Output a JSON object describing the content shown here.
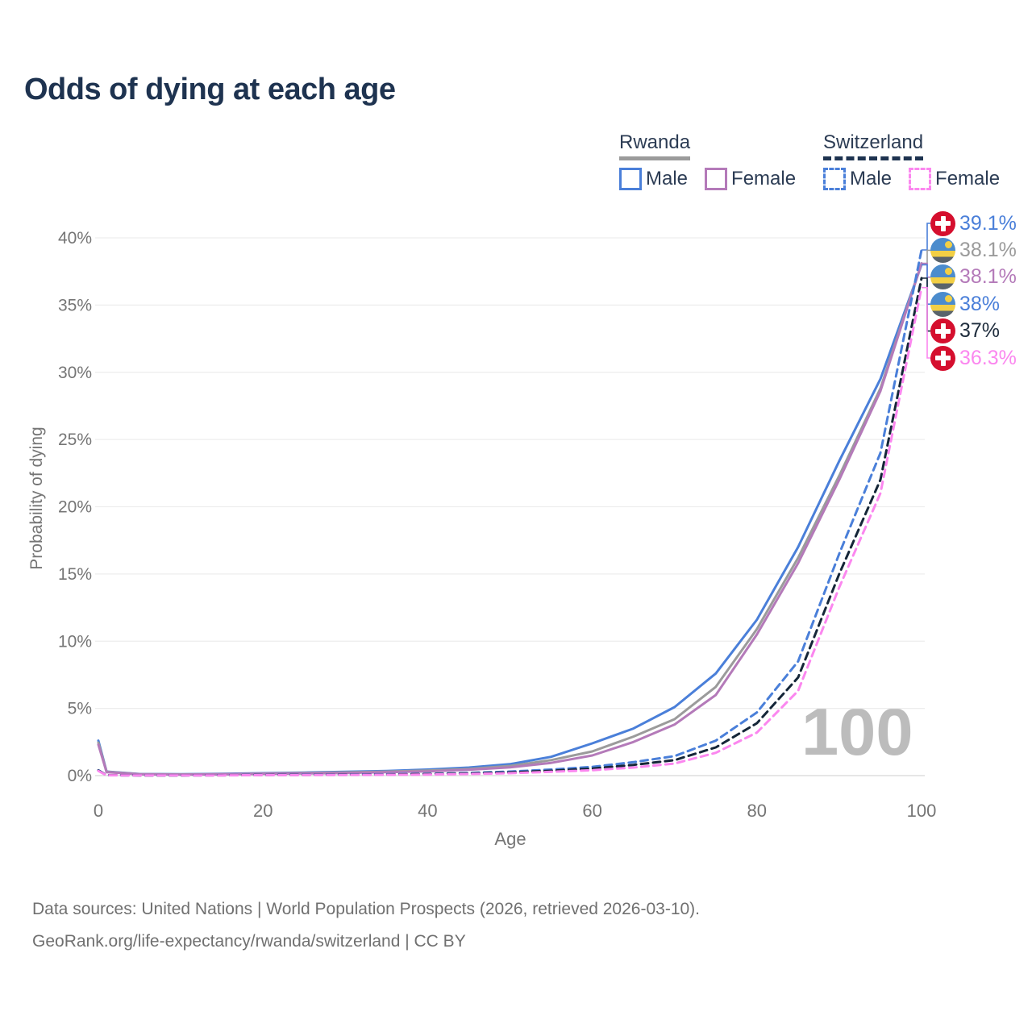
{
  "title": "Odds of dying at each age",
  "watermark": "100",
  "legend": {
    "groups": [
      {
        "label": "Rwanda",
        "line_style": "solid",
        "underline_color": "#9b9b9b",
        "items": [
          {
            "label": "Male",
            "color": "#4a7fd9"
          },
          {
            "label": "Female",
            "color": "#b47ab9"
          }
        ]
      },
      {
        "label": "Switzerland",
        "line_style": "dashed",
        "underline_color": "#1e3350",
        "items": [
          {
            "label": "Male",
            "color": "#4a7fd9"
          },
          {
            "label": "Female",
            "color": "#fb87ef"
          }
        ]
      }
    ]
  },
  "axes": {
    "x_label": "Age",
    "y_label": "Probability of dying",
    "x_ticks": [
      0,
      20,
      40,
      60,
      80,
      100
    ],
    "y_ticks": [
      "0%",
      "5%",
      "10%",
      "15%",
      "20%",
      "25%",
      "30%",
      "35%",
      "40%"
    ]
  },
  "footer": {
    "line1": "Data sources: United Nations | World Population Prospects (2026, retrieved 2026-03-10).",
    "line2": "GeoRank.org/life-expectancy/rwanda/switzerland | CC BY"
  },
  "colors": {
    "title": "#1e3350",
    "axis_text": "#757575",
    "grid": "#ededed",
    "grid_zero": "#d8d8d8",
    "watermark": "#bcbcbc",
    "rwanda_male": "#4a7fd9",
    "rwanda_female": "#b47ab9",
    "rwanda_both": "#9b9b9b",
    "switzerland_male": "#4a7fd9",
    "switzerland_female": "#fb87ef",
    "switzerland_both": "#152638"
  },
  "chart_data": {
    "type": "line",
    "title": "Odds of dying at each age",
    "xlabel": "Age",
    "ylabel": "Probability of dying",
    "x_range": [
      0,
      100
    ],
    "y_range_percent": [
      0,
      40
    ],
    "grid": true,
    "legend_position": "top-right",
    "ages": [
      0,
      1,
      5,
      10,
      15,
      20,
      25,
      30,
      35,
      40,
      45,
      50,
      55,
      60,
      65,
      70,
      75,
      80,
      85,
      90,
      95,
      100
    ],
    "series": [
      {
        "name": "Rwanda male",
        "country": "Rwanda",
        "sex": "male",
        "color": "#4a7fd9",
        "dashed": false,
        "values_percent": [
          2.6,
          0.3,
          0.12,
          0.1,
          0.13,
          0.18,
          0.23,
          0.28,
          0.35,
          0.45,
          0.6,
          0.85,
          1.4,
          2.4,
          3.5,
          5.1,
          7.6,
          11.6,
          17.0,
          23.4,
          29.5,
          38.0
        ],
        "end_value_percent": 38.0
      },
      {
        "name": "Rwanda both sexes",
        "country": "Rwanda",
        "sex": "both",
        "color": "#9b9b9b",
        "dashed": false,
        "values_percent": [
          2.45,
          0.28,
          0.11,
          0.09,
          0.11,
          0.15,
          0.19,
          0.24,
          0.3,
          0.38,
          0.5,
          0.72,
          1.15,
          1.8,
          2.9,
          4.2,
          6.6,
          10.9,
          16.2,
          22.3,
          28.8,
          38.1
        ],
        "end_value_percent": 38.1
      },
      {
        "name": "Rwanda female",
        "country": "Rwanda",
        "sex": "female",
        "color": "#b47ab9",
        "dashed": false,
        "values_percent": [
          2.3,
          0.26,
          0.1,
          0.08,
          0.1,
          0.13,
          0.16,
          0.2,
          0.25,
          0.32,
          0.43,
          0.62,
          0.95,
          1.5,
          2.5,
          3.8,
          6.0,
          10.5,
          15.8,
          22.0,
          28.6,
          38.1
        ],
        "end_value_percent": 38.1
      },
      {
        "name": "Switzerland male",
        "country": "Switzerland",
        "sex": "male",
        "color": "#4a7fd9",
        "dashed": true,
        "values_percent": [
          0.4,
          0.03,
          0.02,
          0.02,
          0.03,
          0.06,
          0.07,
          0.08,
          0.1,
          0.13,
          0.2,
          0.3,
          0.45,
          0.65,
          1.0,
          1.45,
          2.6,
          4.7,
          8.5,
          16.5,
          24.0,
          39.1
        ],
        "end_value_percent": 39.1
      },
      {
        "name": "Switzerland both sexes",
        "country": "Switzerland",
        "sex": "both",
        "color": "#152638",
        "dashed": true,
        "values_percent": [
          0.38,
          0.028,
          0.015,
          0.015,
          0.025,
          0.045,
          0.055,
          0.065,
          0.08,
          0.11,
          0.16,
          0.24,
          0.36,
          0.52,
          0.8,
          1.15,
          2.1,
          3.9,
          7.3,
          15.0,
          22.0,
          37.0
        ],
        "end_value_percent": 37.0
      },
      {
        "name": "Switzerland female",
        "country": "Switzerland",
        "sex": "female",
        "color": "#fb87ef",
        "dashed": true,
        "values_percent": [
          0.35,
          0.025,
          0.013,
          0.013,
          0.02,
          0.035,
          0.04,
          0.05,
          0.06,
          0.08,
          0.12,
          0.18,
          0.28,
          0.4,
          0.6,
          0.9,
          1.7,
          3.2,
          6.3,
          14.0,
          21.0,
          36.3
        ],
        "end_value_percent": 36.3
      }
    ],
    "end_labels": [
      {
        "value": "39.1%",
        "series": "Switzerland male",
        "flag": "switzerland",
        "color": "#4a7fd9"
      },
      {
        "value": "38.1%",
        "series": "Rwanda both sexes",
        "flag": "rwanda",
        "color": "#9b9b9b"
      },
      {
        "value": "38.1%",
        "series": "Rwanda female",
        "flag": "rwanda",
        "color": "#b47ab9"
      },
      {
        "value": "38%",
        "series": "Rwanda male",
        "flag": "rwanda",
        "color": "#4a7fd9"
      },
      {
        "value": "37%",
        "series": "Switzerland both sexes",
        "flag": "switzerland",
        "color": "#1f2d3d"
      },
      {
        "value": "36.3%",
        "series": "Switzerland female",
        "flag": "switzerland",
        "color": "#fb87ef"
      }
    ]
  }
}
